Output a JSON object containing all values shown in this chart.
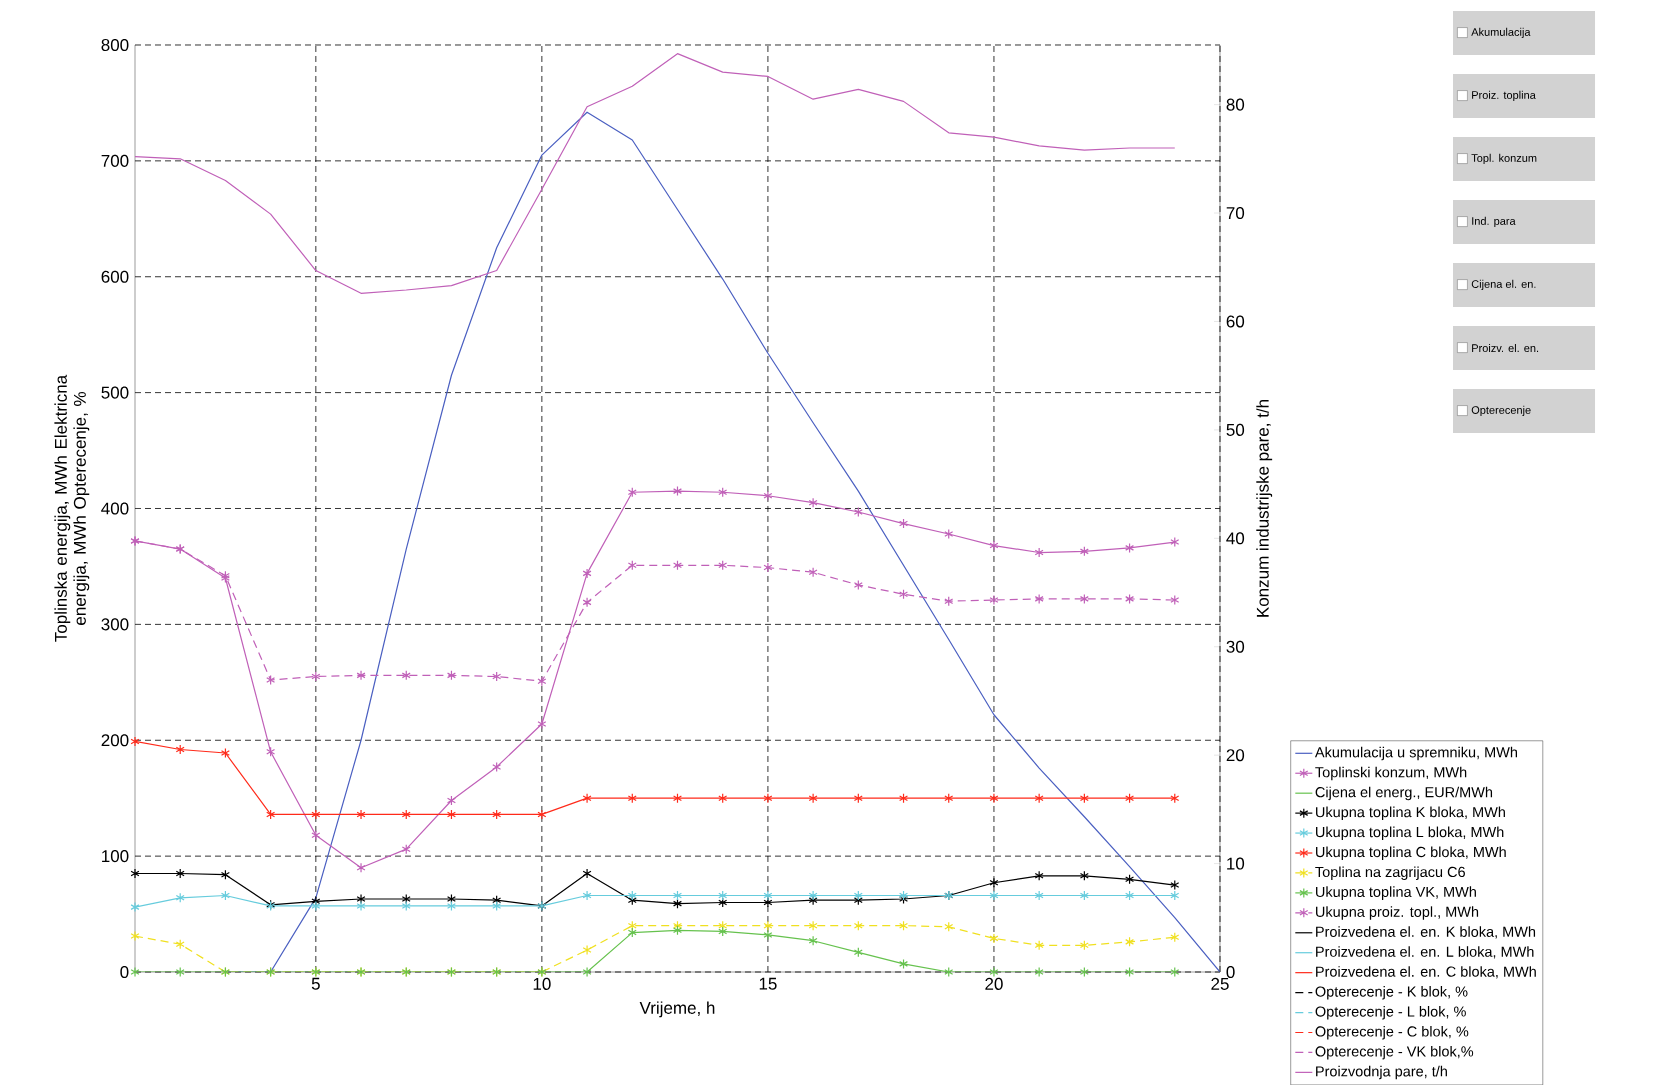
{
  "chart_data": {
    "type": "line",
    "xlabel": "Vrijeme, h",
    "ylabel": "Toplinska energija, MWh Elektricna energija, MWh Opterecenje, %",
    "y2label": "Konzum industrijske pare, t/h",
    "x": [
      1,
      2,
      3,
      4,
      5,
      6,
      7,
      8,
      9,
      10,
      11,
      12,
      13,
      14,
      15,
      16,
      17,
      18,
      19,
      20,
      21,
      22,
      23,
      24
    ],
    "xlim": [
      1,
      25
    ],
    "xticks": [
      5,
      10,
      15,
      20,
      25
    ],
    "ylim": [
      0,
      800
    ],
    "yticks": [
      0,
      100,
      200,
      300,
      400,
      500,
      600,
      700,
      800
    ],
    "y2lim": [
      0,
      85.5
    ],
    "y2ticks": [
      0,
      10,
      20,
      30,
      40,
      50,
      60,
      70,
      80
    ],
    "grid": true,
    "legend": "right",
    "series": [
      {
        "name": "Akumulacija u spremniku, MWh",
        "color": "#4a5fc1",
        "marker": "none",
        "line_style": "solid",
        "x": [
          3,
          4,
          5,
          6,
          7,
          8,
          9,
          10,
          11,
          12,
          13,
          14,
          15,
          16,
          17,
          18,
          19,
          20,
          21,
          22,
          23,
          24,
          25
        ],
        "values": [
          0,
          0,
          64,
          200,
          365,
          515,
          625,
          705,
          742,
          718,
          658,
          598,
          534,
          474,
          415,
          351,
          287,
          222,
          176,
          134,
          91,
          47,
          0
        ]
      },
      {
        "name": "Toplinski konzum, MWh",
        "color": "#c060b8",
        "marker": "cross",
        "line_style": "solid",
        "values": [
          372,
          365,
          340,
          190,
          118,
          90,
          106,
          148,
          177,
          214,
          344,
          414,
          415,
          414,
          411,
          405,
          397,
          387,
          378,
          368,
          362,
          363,
          366,
          371
        ]
      },
      {
        "name": "Cijena el energ., EUR/MWh",
        "color": "#66c24e",
        "marker": "none",
        "line_style": "solid",
        "values": [
          null,
          null,
          null,
          null,
          null,
          null,
          null,
          null,
          null,
          null,
          null,
          null,
          null,
          null,
          null,
          null,
          null,
          null,
          null,
          null,
          null,
          null,
          null,
          null
        ]
      },
      {
        "name": "Ukupna toplina K bloka, MWh",
        "color": "#000000",
        "marker": "cross",
        "line_style": "solid",
        "values": [
          85,
          85,
          84,
          58,
          61,
          63,
          63,
          63,
          62,
          57,
          85,
          62,
          59,
          60,
          60,
          62,
          62,
          63,
          66,
          77,
          83,
          83,
          80,
          75
        ]
      },
      {
        "name": "Ukupna toplina L bloka, MWh",
        "color": "#66ccdd",
        "marker": "cross",
        "line_style": "solid",
        "values": [
          56,
          64,
          66,
          57,
          57,
          57,
          57,
          57,
          57,
          57,
          66,
          66,
          66,
          66,
          66,
          66,
          66,
          66,
          66,
          66,
          66,
          66,
          66,
          66
        ]
      },
      {
        "name": "Ukupna toplina C bloka, MWh",
        "color": "#ff2a1a",
        "marker": "cross",
        "line_style": "solid",
        "values": [
          199,
          192,
          189,
          136,
          136,
          136,
          136,
          136,
          136,
          136,
          150,
          150,
          150,
          150,
          150,
          150,
          150,
          150,
          150,
          150,
          150,
          150,
          150,
          150
        ]
      },
      {
        "name": "Toplina na zagrijacu C6",
        "color": "#f0e020",
        "marker": "cross",
        "line_style": "dashed",
        "values": [
          31,
          24,
          0,
          0,
          0,
          0,
          0,
          0,
          0,
          0,
          19,
          40,
          40,
          40,
          40,
          40,
          40,
          40,
          39,
          29,
          23,
          23,
          26,
          30
        ]
      },
      {
        "name": "Ukupna toplina VK, MWh",
        "color": "#66c24e",
        "marker": "cross",
        "line_style": "solid",
        "values": [
          0,
          0,
          0,
          0,
          0,
          0,
          0,
          0,
          0,
          0,
          0,
          34,
          36,
          35,
          32,
          27,
          17,
          7,
          0,
          0,
          0,
          0,
          0,
          0
        ]
      },
      {
        "name": "Ukupna proiz. topl., MWh",
        "color": "#c060b8",
        "marker": "cross",
        "line_style": "dashed",
        "values": [
          372,
          365,
          342,
          252,
          255,
          256,
          256,
          256,
          255,
          251,
          319,
          351,
          351,
          351,
          349,
          345,
          334,
          326,
          320,
          321,
          322,
          322,
          322,
          321
        ]
      },
      {
        "name": "Proizvedena el. en. K bloka, MWh",
        "color": "#000000",
        "marker": "none",
        "line_style": "solid",
        "values": [
          null,
          null,
          null,
          null,
          null,
          null,
          null,
          null,
          null,
          null,
          null,
          null,
          null,
          null,
          null,
          null,
          null,
          null,
          null,
          null,
          null,
          null,
          null,
          null
        ]
      },
      {
        "name": "Proizvedena el. en. L bloka, MWh",
        "color": "#66ccdd",
        "marker": "none",
        "line_style": "solid",
        "values": [
          null,
          null,
          null,
          null,
          null,
          null,
          null,
          null,
          null,
          null,
          null,
          null,
          null,
          null,
          null,
          null,
          null,
          null,
          null,
          null,
          null,
          null,
          null,
          null
        ]
      },
      {
        "name": "Proizvedena el. en. C bloka, MWh",
        "color": "#ff2a1a",
        "marker": "none",
        "line_style": "solid",
        "values": [
          null,
          null,
          null,
          null,
          null,
          null,
          null,
          null,
          null,
          null,
          null,
          null,
          null,
          null,
          null,
          null,
          null,
          null,
          null,
          null,
          null,
          null,
          null,
          null
        ]
      },
      {
        "name": "Opterecenje - K blok, %",
        "color": "#000000",
        "marker": "none",
        "line_style": "dashed",
        "values": [
          null,
          null,
          null,
          null,
          null,
          null,
          null,
          null,
          null,
          null,
          null,
          null,
          null,
          null,
          null,
          null,
          null,
          null,
          null,
          null,
          null,
          null,
          null,
          null
        ]
      },
      {
        "name": "Opterecenje - L blok, %",
        "color": "#66ccdd",
        "marker": "none",
        "line_style": "dashed",
        "values": [
          null,
          null,
          null,
          null,
          null,
          null,
          null,
          null,
          null,
          null,
          null,
          null,
          null,
          null,
          null,
          null,
          null,
          null,
          null,
          null,
          null,
          null,
          null,
          null
        ]
      },
      {
        "name": "Opterecenje - C blok, %",
        "color": "#ff2a1a",
        "marker": "none",
        "line_style": "dashed",
        "values": [
          null,
          null,
          null,
          null,
          null,
          null,
          null,
          null,
          null,
          null,
          null,
          null,
          null,
          null,
          null,
          null,
          null,
          null,
          null,
          null,
          null,
          null,
          null,
          null
        ]
      },
      {
        "name": "Opterecenje - VK blok,%",
        "color": "#c060b8",
        "marker": "none",
        "line_style": "dashed",
        "values": [
          null,
          null,
          null,
          null,
          null,
          null,
          null,
          null,
          null,
          null,
          null,
          null,
          null,
          null,
          null,
          null,
          null,
          null,
          null,
          null,
          null,
          null,
          null,
          null
        ]
      },
      {
        "name": "Proizvodnja pare, t/h",
        "color": "#c060b8",
        "marker": "none",
        "line_style": "solid",
        "axis": "y2",
        "values": [
          75.2,
          75.0,
          73.0,
          69.9,
          64.7,
          62.6,
          62.9,
          63.3,
          64.7,
          72.2,
          79.8,
          81.7,
          84.7,
          83.0,
          82.6,
          80.5,
          81.4,
          80.3,
          77.4,
          77.0,
          76.2,
          75.8,
          76.0,
          76.0
        ]
      }
    ],
    "annotations": [
      "Akumulacija",
      "Proiz. toplina",
      "Topl. konzum",
      "Ind. para",
      "Cijena el. en.",
      "Proizv. el. en.",
      "Opterecenje"
    ]
  }
}
